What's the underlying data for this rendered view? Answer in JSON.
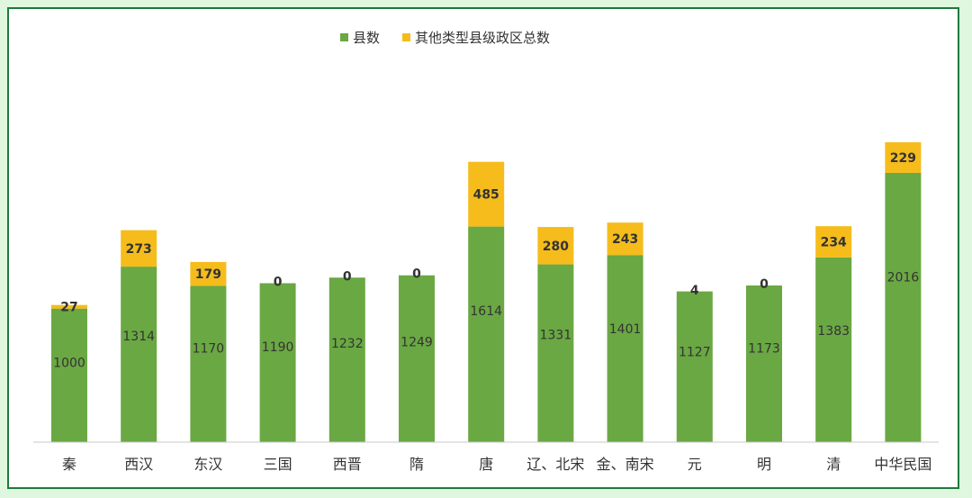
{
  "chart_data": {
    "type": "bar",
    "stacked": true,
    "title": "",
    "xlabel": "",
    "ylabel": "",
    "ylim": [
      0,
      2400
    ],
    "grid": false,
    "legend_position": "top-center",
    "categories": [
      "秦",
      "西汉",
      "东汉",
      "三国",
      "西晋",
      "隋",
      "唐",
      "辽、北宋",
      "金、南宋",
      "元",
      "明",
      "清",
      "中华民国"
    ],
    "series": [
      {
        "name": "县数",
        "color": "#6aa843",
        "values": [
          1000,
          1314,
          1170,
          1190,
          1232,
          1249,
          1614,
          1331,
          1401,
          1127,
          1173,
          1383,
          2016
        ]
      },
      {
        "name": "其他类型县级政区总数",
        "color": "#f5bc1c",
        "values": [
          27,
          273,
          179,
          0,
          0,
          0,
          485,
          280,
          243,
          4,
          0,
          234,
          229
        ]
      }
    ]
  }
}
